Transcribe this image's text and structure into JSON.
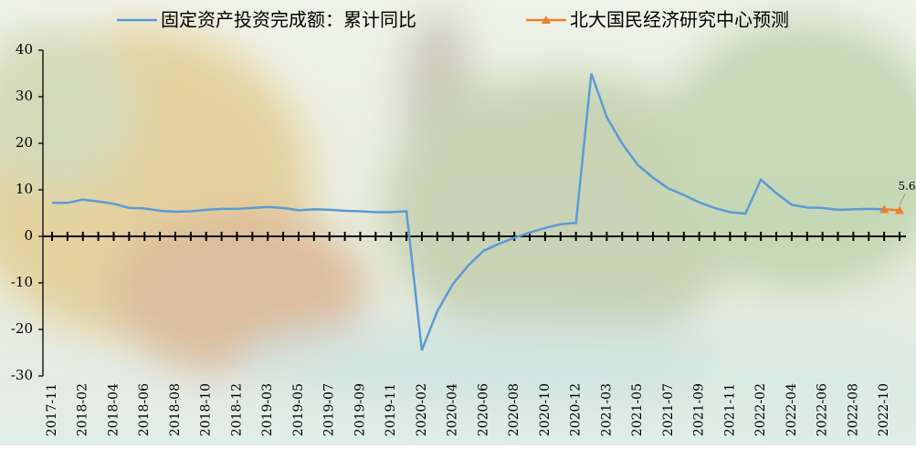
{
  "chart_data": {
    "type": "line",
    "categories": [
      "2017-11",
      null,
      "2018-02",
      null,
      "2018-04",
      null,
      "2018-06",
      null,
      "2018-08",
      null,
      "2018-10",
      null,
      "2018-12",
      null,
      "2019-03",
      null,
      "2019-05",
      null,
      "2019-07",
      null,
      "2019-09",
      null,
      "2019-11",
      null,
      "2020-02",
      null,
      "2020-04",
      null,
      "2020-06",
      null,
      "2020-08",
      null,
      "2020-10",
      null,
      "2020-12",
      null,
      "2021-03",
      null,
      "2021-05",
      null,
      "2021-07",
      null,
      "2021-09",
      null,
      "2021-11",
      null,
      "2022-02",
      null,
      "2022-04",
      null,
      "2022-06",
      null,
      "2022-08",
      null,
      "2022-10",
      null
    ],
    "series": [
      {
        "name": "固定资产投资完成额：累计同比",
        "color": "#5b9bd5",
        "values": [
          7.2,
          7.2,
          7.9,
          7.5,
          7.0,
          6.1,
          6.0,
          5.5,
          5.3,
          5.4,
          5.7,
          5.9,
          5.9,
          6.1,
          6.3,
          6.1,
          5.6,
          5.8,
          5.7,
          5.5,
          5.4,
          5.2,
          5.2,
          5.4,
          -24.5,
          -16.1,
          -10.3,
          -6.3,
          -3.1,
          -1.6,
          -0.3,
          0.8,
          1.8,
          2.6,
          2.9,
          35.0,
          25.6,
          19.9,
          15.4,
          12.6,
          10.3,
          8.9,
          7.3,
          6.1,
          5.2,
          4.9,
          12.2,
          9.3,
          6.8,
          6.2,
          6.1,
          5.7,
          5.8,
          5.9,
          5.8,
          null
        ]
      },
      {
        "name": "北大国民经济研究中心预测",
        "color": "#ed7d31",
        "values": [
          null,
          null,
          null,
          null,
          null,
          null,
          null,
          null,
          null,
          null,
          null,
          null,
          null,
          null,
          null,
          null,
          null,
          null,
          null,
          null,
          null,
          null,
          null,
          null,
          null,
          null,
          null,
          null,
          null,
          null,
          null,
          null,
          null,
          null,
          null,
          null,
          null,
          null,
          null,
          null,
          null,
          null,
          null,
          null,
          null,
          null,
          null,
          null,
          null,
          null,
          null,
          null,
          null,
          null,
          5.8,
          5.6
        ]
      }
    ],
    "ylim": [
      -30,
      40
    ],
    "yticks": [
      -30,
      -20,
      -10,
      0,
      10,
      20,
      30,
      40
    ]
  }
}
